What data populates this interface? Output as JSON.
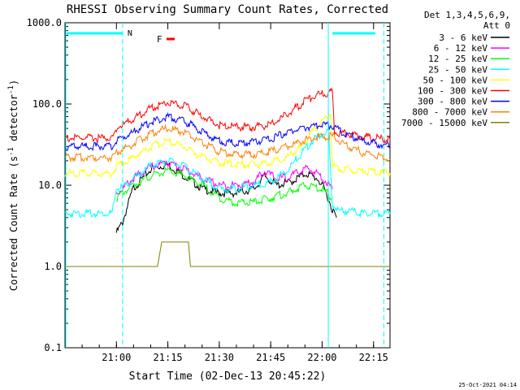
{
  "chart_data": {
    "type": "line",
    "title": "RHESSI Observing Summary Count Rates, Corrected",
    "xlabel": "Start Time (02-Dec-13 20:45:22)",
    "ylabel_main": "Corrected Count Rate (s",
    "ylabel_sup1": "-1",
    "ylabel_mid": " detector",
    "ylabel_sup2": "-1",
    "ylabel_end": ")",
    "y_scale": "log",
    "ylim": [
      0.1,
      1000
    ],
    "xlim_minutes": [
      20.75,
      22.33
    ],
    "y_ticks": [
      {
        "v": 1000,
        "label": "1000.0"
      },
      {
        "v": 100,
        "label": "100.0"
      },
      {
        "v": 10,
        "label": "10.0"
      },
      {
        "v": 1,
        "label": "1.0"
      },
      {
        "v": 0.1,
        "label": "0.1"
      }
    ],
    "x_ticks": [
      {
        "t": 21.0,
        "label": "21:00"
      },
      {
        "t": 21.25,
        "label": "21:15"
      },
      {
        "t": 21.5,
        "label": "21:30"
      },
      {
        "t": 21.75,
        "label": "21:45"
      },
      {
        "t": 22.0,
        "label": "22:00"
      },
      {
        "t": 22.25,
        "label": "22:15"
      }
    ],
    "legend_header": [
      "Det 1,3,4,5,6,9,",
      "Att 0"
    ],
    "legend_placement": "right",
    "series": [
      {
        "name": "3 - 6 keV",
        "color": "#000000",
        "points": [
          [
            20.75,
            null
          ],
          [
            21.0,
            2.6
          ],
          [
            21.03,
            3.5
          ],
          [
            21.08,
            9
          ],
          [
            21.17,
            16
          ],
          [
            21.25,
            18
          ],
          [
            21.33,
            13
          ],
          [
            21.42,
            9
          ],
          [
            21.5,
            8
          ],
          [
            21.58,
            8
          ],
          [
            21.67,
            9
          ],
          [
            21.72,
            13
          ],
          [
            21.78,
            10
          ],
          [
            21.85,
            11
          ],
          [
            21.92,
            14
          ],
          [
            21.98,
            12
          ],
          [
            22.02,
            8
          ],
          [
            22.05,
            5
          ],
          [
            22.07,
            4
          ]
        ]
      },
      {
        "name": "6 - 12 keV",
        "color": "#ff00ff",
        "points": [
          [
            21.0,
            8
          ],
          [
            21.03,
            9
          ],
          [
            21.08,
            12
          ],
          [
            21.17,
            17
          ],
          [
            21.25,
            19
          ],
          [
            21.33,
            16
          ],
          [
            21.42,
            12
          ],
          [
            21.5,
            10
          ],
          [
            21.58,
            10
          ],
          [
            21.67,
            11
          ],
          [
            21.72,
            15
          ],
          [
            21.78,
            12
          ],
          [
            21.85,
            13
          ],
          [
            21.92,
            16
          ],
          [
            21.98,
            14
          ],
          [
            22.02,
            11
          ],
          [
            22.05,
            9
          ]
        ]
      },
      {
        "name": "12 - 25 keV",
        "color": "#00ff00",
        "points": [
          [
            21.0,
            7
          ],
          [
            21.03,
            8
          ],
          [
            21.08,
            10
          ],
          [
            21.17,
            13
          ],
          [
            21.25,
            15
          ],
          [
            21.33,
            13
          ],
          [
            21.42,
            10
          ],
          [
            21.5,
            7
          ],
          [
            21.58,
            6
          ],
          [
            21.67,
            6.2
          ],
          [
            21.75,
            7
          ],
          [
            21.83,
            8
          ],
          [
            21.92,
            10
          ],
          [
            22.0,
            9
          ],
          [
            22.05,
            7
          ]
        ]
      },
      {
        "name": "25 - 50 keV",
        "color": "#00ffff",
        "points": [
          [
            20.75,
            4.5
          ],
          [
            20.98,
            4.5
          ],
          [
            21.0,
            9
          ],
          [
            21.05,
            10
          ],
          [
            21.1,
            13
          ],
          [
            21.17,
            18
          ],
          [
            21.25,
            20
          ],
          [
            21.33,
            17
          ],
          [
            21.42,
            12
          ],
          [
            21.5,
            9
          ],
          [
            21.58,
            9
          ],
          [
            21.67,
            10
          ],
          [
            21.75,
            11
          ],
          [
            21.83,
            15
          ],
          [
            21.9,
            25
          ],
          [
            21.95,
            35
          ],
          [
            22.0,
            42
          ],
          [
            22.03,
            45
          ],
          [
            22.05,
            6
          ],
          [
            22.08,
            4.8
          ],
          [
            22.15,
            4.8
          ],
          [
            22.2,
            4.5
          ],
          [
            22.33,
            4.5
          ]
        ]
      },
      {
        "name": "50 - 100 keV",
        "color": "#ffff00",
        "points": [
          [
            20.75,
            14
          ],
          [
            20.98,
            14
          ],
          [
            21.0,
            17
          ],
          [
            21.08,
            22
          ],
          [
            21.17,
            30
          ],
          [
            21.25,
            35
          ],
          [
            21.33,
            30
          ],
          [
            21.42,
            22
          ],
          [
            21.5,
            19
          ],
          [
            21.58,
            18
          ],
          [
            21.67,
            18
          ],
          [
            21.75,
            19
          ],
          [
            21.83,
            22
          ],
          [
            21.9,
            30
          ],
          [
            21.95,
            45
          ],
          [
            22.0,
            60
          ],
          [
            22.04,
            80
          ],
          [
            22.05,
            17
          ],
          [
            22.1,
            16
          ],
          [
            22.2,
            15
          ],
          [
            22.33,
            14
          ]
        ]
      },
      {
        "name": "100 - 300 keV",
        "color": "#ff0000",
        "points": [
          [
            20.75,
            38
          ],
          [
            20.98,
            38
          ],
          [
            21.0,
            50
          ],
          [
            21.08,
            65
          ],
          [
            21.17,
            90
          ],
          [
            21.25,
            105
          ],
          [
            21.33,
            95
          ],
          [
            21.42,
            70
          ],
          [
            21.5,
            55
          ],
          [
            21.58,
            52
          ],
          [
            21.67,
            52
          ],
          [
            21.75,
            55
          ],
          [
            21.83,
            75
          ],
          [
            21.92,
            110
          ],
          [
            22.0,
            135
          ],
          [
            22.05,
            140
          ],
          [
            22.06,
            45
          ],
          [
            22.1,
            44
          ],
          [
            22.2,
            40
          ],
          [
            22.33,
            36
          ]
        ]
      },
      {
        "name": "300 - 800 keV",
        "color": "#0000ff",
        "points": [
          [
            20.75,
            30
          ],
          [
            20.98,
            30
          ],
          [
            21.0,
            35
          ],
          [
            21.08,
            45
          ],
          [
            21.17,
            60
          ],
          [
            21.25,
            70
          ],
          [
            21.33,
            62
          ],
          [
            21.42,
            45
          ],
          [
            21.5,
            35
          ],
          [
            21.58,
            33
          ],
          [
            21.67,
            34
          ],
          [
            21.75,
            37
          ],
          [
            21.83,
            45
          ],
          [
            21.92,
            52
          ],
          [
            22.0,
            55
          ],
          [
            22.05,
            55
          ],
          [
            22.1,
            45
          ],
          [
            22.2,
            35
          ],
          [
            22.33,
            30
          ]
        ]
      },
      {
        "name": "800 - 7000 keV",
        "color": "#ff8000",
        "points": [
          [
            20.75,
            22
          ],
          [
            20.98,
            22
          ],
          [
            21.0,
            25
          ],
          [
            21.08,
            32
          ],
          [
            21.17,
            44
          ],
          [
            21.25,
            50
          ],
          [
            21.33,
            45
          ],
          [
            21.42,
            33
          ],
          [
            21.5,
            26
          ],
          [
            21.58,
            24
          ],
          [
            21.67,
            24
          ],
          [
            21.75,
            26
          ],
          [
            21.83,
            30
          ],
          [
            21.92,
            36
          ],
          [
            22.0,
            40
          ],
          [
            22.05,
            40
          ],
          [
            22.1,
            32
          ],
          [
            22.2,
            25
          ],
          [
            22.33,
            21
          ]
        ]
      },
      {
        "name": "7000 - 15000 keV",
        "color": "#808000",
        "points": [
          [
            20.75,
            1
          ],
          [
            21.2,
            1
          ],
          [
            21.22,
            2
          ],
          [
            21.35,
            2
          ],
          [
            21.36,
            1
          ],
          [
            22.33,
            1
          ]
        ]
      }
    ],
    "annotations": [
      {
        "text": "N",
        "color": "#00ffff"
      },
      {
        "text": "F",
        "color": "#ff0000"
      }
    ]
  },
  "footer_timestamp": "25-Oct-2021 04:14"
}
